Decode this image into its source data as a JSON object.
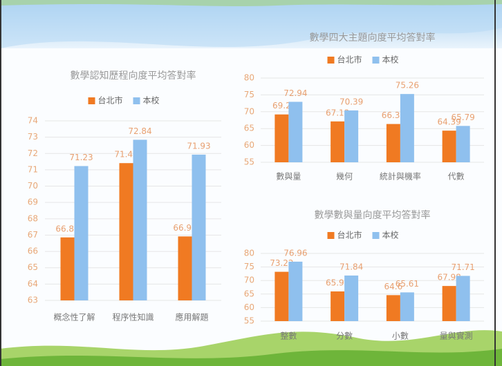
{
  "chart_data": [
    {
      "type": "bar",
      "title": "數學認知歷程向度平均答對率",
      "categories": [
        "概念性了解",
        "程序性知識",
        "應用解題"
      ],
      "series": [
        {
          "name": "台北市",
          "color": "#f07a22",
          "values": [
            66.86,
            71.41,
            66.92
          ]
        },
        {
          "name": "本校",
          "color": "#8fc0ee",
          "values": [
            71.23,
            72.84,
            71.93
          ]
        }
      ],
      "ylim": [
        63,
        74
      ],
      "yticks": [
        63,
        64,
        65,
        66,
        67,
        68,
        69,
        70,
        71,
        72,
        73,
        74
      ],
      "grid": true
    },
    {
      "type": "bar",
      "title": "數學四大主題向度平均答對率",
      "categories": [
        "數與量",
        "幾何",
        "統計與機率",
        "代數"
      ],
      "series": [
        {
          "name": "台北市",
          "color": "#f07a22",
          "values": [
            69.2,
            67.13,
            66.36,
            64.39
          ]
        },
        {
          "name": "本校",
          "color": "#8fc0ee",
          "values": [
            72.94,
            70.39,
            75.26,
            65.79
          ]
        }
      ],
      "ylim": [
        55,
        80
      ],
      "yticks": [
        55,
        60,
        65,
        70,
        75,
        80
      ],
      "grid": true
    },
    {
      "type": "bar",
      "title": "數學數與量向度平均答對率",
      "categories": [
        "整數",
        "分數",
        "小數",
        "量與實測"
      ],
      "series": [
        {
          "name": "台北市",
          "color": "#f07a22",
          "values": [
            73.22,
            65.97,
            64.6,
            67.98
          ]
        },
        {
          "name": "本校",
          "color": "#8fc0ee",
          "values": [
            76.96,
            71.84,
            65.61,
            71.71
          ]
        }
      ],
      "ylim": [
        55,
        80
      ],
      "yticks": [
        55,
        60,
        65,
        70,
        75,
        80
      ],
      "grid": true
    }
  ]
}
